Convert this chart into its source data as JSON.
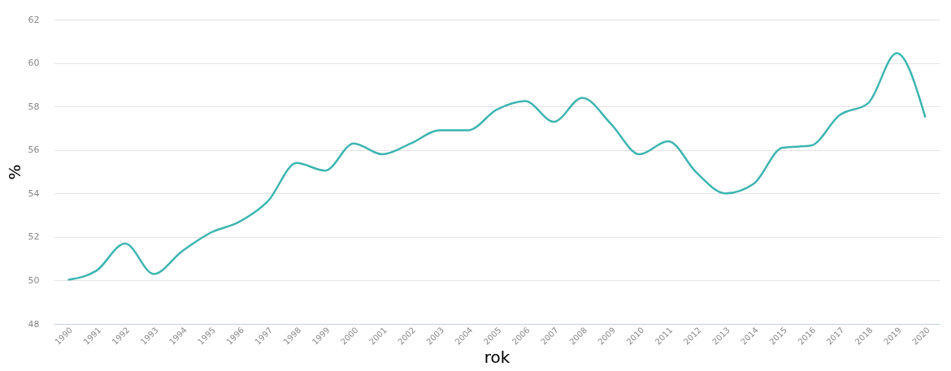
{
  "chart_data": {
    "type": "line",
    "xlabel": "rok",
    "ylabel": "%",
    "categories": [
      "1990",
      "1991",
      "1992",
      "1993",
      "1994",
      "1995",
      "1996",
      "1997",
      "1998",
      "1999",
      "2000",
      "2001",
      "2002",
      "2003",
      "2004",
      "2005",
      "2006",
      "2007",
      "2008",
      "2009",
      "2010",
      "2011",
      "2012",
      "2013",
      "2014",
      "2015",
      "2016",
      "2017",
      "2018",
      "2019",
      "2020"
    ],
    "series": [
      {
        "color": "#3db5b0",
        "values": [
          50.03,
          50.45,
          51.7,
          50.3,
          51.35,
          52.2,
          52.7,
          53.65,
          55.4,
          55.05,
          56.3,
          55.8,
          56.3,
          56.9,
          56.9,
          57.85,
          58.25,
          57.3,
          58.4,
          57.2,
          55.8,
          56.4,
          54.95,
          54.0,
          54.45,
          56.1,
          56.2,
          57.6,
          58.15,
          60.45,
          57.5
        ]
      }
    ],
    "ylim": [
      48,
      62
    ],
    "yticks": [
      48,
      50,
      52,
      54,
      56,
      58,
      60,
      62
    ],
    "grid": "y"
  }
}
